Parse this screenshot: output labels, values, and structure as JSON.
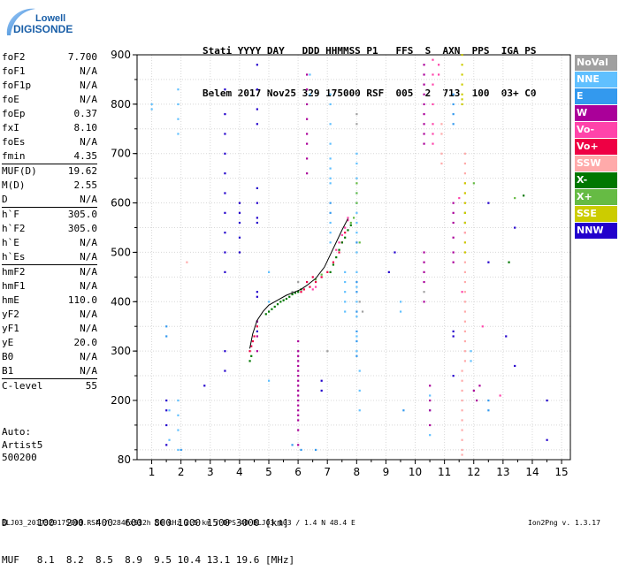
{
  "logo": {
    "line1": "Lowell",
    "line2": "DIGISONDE"
  },
  "header": {
    "line1": "Stati YYYY DAY   DDD HHMMSS P1   FFS  S  AXN  PPS  IGA PS",
    "line2": "Belem 2017 Nov25 329 175000 RSF  005  2  713  100  03+ C0"
  },
  "params": [
    {
      "label": "foF2",
      "value": "7.700"
    },
    {
      "label": "foF1",
      "value": "N/A"
    },
    {
      "label": "foF1p",
      "value": "N/A"
    },
    {
      "label": "foE",
      "value": "N/A"
    },
    {
      "label": "foEp",
      "value": "0.37"
    },
    {
      "label": "fxI",
      "value": "8.10"
    },
    {
      "label": "foEs",
      "value": "N/A"
    },
    {
      "label": "fmin",
      "value": "4.35"
    },
    {
      "sep": true
    },
    {
      "label": "MUF(D)",
      "value": "19.62"
    },
    {
      "label": "M(D)",
      "value": "2.55"
    },
    {
      "label": "D",
      "value": "N/A"
    },
    {
      "sep": true
    },
    {
      "label": "h`F",
      "value": "305.0"
    },
    {
      "label": "h`F2",
      "value": "305.0"
    },
    {
      "label": "h`E",
      "value": "N/A"
    },
    {
      "label": "h`Es",
      "value": "N/A"
    },
    {
      "sep": true
    },
    {
      "label": "hmF2",
      "value": "N/A"
    },
    {
      "label": "hmF1",
      "value": "N/A"
    },
    {
      "label": "hmE",
      "value": "110.0"
    },
    {
      "label": "yF2",
      "value": "N/A"
    },
    {
      "label": "yF1",
      "value": "N/A"
    },
    {
      "label": "yE",
      "value": "20.0"
    },
    {
      "label": "B0",
      "value": "N/A"
    },
    {
      "label": "B1",
      "value": "N/A"
    },
    {
      "sep": true
    },
    {
      "label": "C-level",
      "value": "55"
    }
  ],
  "auto": {
    "line1": "Auto:",
    "line2": "Artist5",
    "line3": "500200"
  },
  "muf_table": {
    "line1": "D     100  200  400  600  800 1000 1500 3000 [km]",
    "line2": "MUF   8.1  8.2  8.5  8.9  9.5 10.4 13.1 19.6 [MHz]"
  },
  "footer": {
    "left": "BLJ03_2017329175000.RSF / 284fx512h 50 kHz 2.5 km / DPS-4D BLJ03 103 / 1.4 N 48.4 E",
    "right": "Ion2Png v. 1.3.17"
  },
  "legend": [
    {
      "label": "NoVal",
      "color": "#a0a0a0"
    },
    {
      "label": "NNE",
      "color": "#60c0ff"
    },
    {
      "label": "E",
      "color": "#3399ee"
    },
    {
      "label": "W",
      "color": "#aa0099"
    },
    {
      "label": "Vo-",
      "color": "#ff44aa"
    },
    {
      "label": "Vo+",
      "color": "#ee0044"
    },
    {
      "label": "SSW",
      "color": "#ffaaaa"
    },
    {
      "label": "X-",
      "color": "#007700"
    },
    {
      "label": "X+",
      "color": "#66bb44"
    },
    {
      "label": "SSE",
      "color": "#cccc00"
    },
    {
      "label": "NNW",
      "color": "#2200cc"
    }
  ],
  "chart_data": {
    "type": "scatter",
    "xlabel": "",
    "ylabel": "",
    "xlim": [
      0.5,
      15.3
    ],
    "ylim": [
      80,
      900
    ],
    "xticks": [
      1,
      2,
      3,
      4,
      5,
      6,
      7,
      8,
      9,
      10,
      11,
      12,
      13,
      14,
      15
    ],
    "yticks": [
      80,
      200,
      300,
      400,
      500,
      600,
      700,
      800,
      900
    ],
    "grid": true,
    "trace_curve": {
      "name": "",
      "color": "#000000",
      "x": [
        4.35,
        4.45,
        4.6,
        4.8,
        5.0,
        5.3,
        5.6,
        5.9,
        6.1,
        6.3,
        6.6,
        6.9,
        7.1,
        7.3,
        7.5,
        7.7
      ],
      "y": [
        305,
        335,
        362,
        380,
        393,
        403,
        413,
        420,
        425,
        433,
        447,
        470,
        495,
        520,
        545,
        568
      ]
    },
    "series": [
      {
        "name": "NNW",
        "color": "#2200cc",
        "x": [
          3.5,
          3.5,
          3.5,
          3.5,
          3.5,
          3.5,
          3.5,
          3.5,
          3.5,
          3.5,
          3.5,
          3.5,
          4.6,
          4.6,
          4.6,
          4.6,
          4.6,
          4.6,
          4.6,
          4.6,
          4.6,
          4.6,
          4.6,
          4.6,
          4.0,
          4.0,
          4.0,
          4.0,
          4.0,
          1.5,
          1.5,
          1.5,
          1.5,
          11.3,
          11.3,
          11.3,
          12.5,
          12.5,
          13.4,
          13.4,
          13.1,
          14.5,
          14.5,
          2.8,
          6.8,
          6.8,
          9.3,
          9.1
        ],
        "y": [
          830,
          780,
          740,
          700,
          660,
          620,
          580,
          540,
          500,
          460,
          300,
          260,
          880,
          830,
          790,
          760,
          630,
          600,
          570,
          560,
          420,
          410,
          360,
          340,
          600,
          580,
          560,
          530,
          500,
          200,
          180,
          150,
          110,
          340,
          330,
          250,
          600,
          480,
          550,
          270,
          330,
          200,
          120,
          230,
          240,
          220,
          500,
          460
        ]
      },
      {
        "name": "NNE",
        "color": "#60c0ff",
        "x": [
          1.9,
          1.9,
          1.9,
          1.9,
          1.9,
          1.9,
          1.9,
          1.9,
          7.1,
          7.1,
          7.1,
          7.1,
          7.1,
          7.1,
          7.1,
          7.1,
          7.1,
          7.1,
          7.1,
          8.0,
          8.0,
          8.0,
          8.0,
          8.0,
          8.0,
          8.0,
          8.0,
          8.0,
          8.0,
          8.0,
          8.0,
          8.0,
          8.0,
          8.0,
          8.1,
          8.1,
          8.1,
          7.6,
          7.6,
          7.6,
          7.6,
          7.6,
          5.0,
          5.0,
          5.0,
          10.5,
          10.5,
          10.5,
          11.9,
          11.9,
          9.5,
          9.5,
          1.0,
          1.0,
          1.6,
          1.6,
          6.4,
          6.4
        ],
        "y": [
          830,
          800,
          770,
          740,
          200,
          170,
          140,
          100,
          820,
          800,
          760,
          720,
          690,
          670,
          650,
          640,
          560,
          540,
          520,
          700,
          680,
          650,
          620,
          600,
          580,
          560,
          540,
          500,
          460,
          430,
          400,
          370,
          330,
          300,
          260,
          220,
          180,
          460,
          440,
          420,
          400,
          380,
          460,
          400,
          240,
          210,
          180,
          130,
          300,
          280,
          400,
          380,
          800,
          790,
          180,
          120,
          860,
          820
        ]
      },
      {
        "name": "W",
        "color": "#aa0099",
        "x": [
          6.0,
          6.0,
          6.0,
          6.0,
          6.0,
          6.0,
          6.0,
          6.0,
          6.0,
          6.0,
          6.0,
          6.0,
          6.0,
          6.0,
          6.0,
          6.0,
          6.0,
          6.0,
          6.3,
          6.3,
          6.3,
          6.3,
          6.3,
          6.3,
          6.3,
          6.3,
          10.3,
          10.3,
          10.3,
          10.3,
          10.3,
          10.3,
          10.3,
          10.3,
          10.3,
          10.3,
          10.3,
          10.3,
          10.3,
          10.3,
          10.5,
          10.5,
          10.5,
          10.5,
          11.3,
          11.3,
          11.3,
          11.3,
          11.3,
          11.3,
          4.6,
          4.6,
          4.6,
          12.0,
          12.1,
          12.2
        ],
        "y": [
          320,
          300,
          290,
          280,
          270,
          260,
          250,
          240,
          230,
          220,
          210,
          200,
          190,
          180,
          170,
          160,
          140,
          110,
          860,
          830,
          800,
          770,
          740,
          720,
          690,
          660,
          880,
          860,
          840,
          820,
          800,
          780,
          760,
          740,
          720,
          500,
          480,
          460,
          440,
          400,
          230,
          200,
          180,
          150,
          600,
          580,
          560,
          530,
          500,
          480,
          360,
          330,
          300,
          220,
          200,
          230
        ]
      },
      {
        "name": "Vo-",
        "color": "#ff44aa",
        "x": [
          7.3,
          7.4,
          7.5,
          7.6,
          7.7,
          7.7,
          10.6,
          10.6,
          10.6,
          10.6,
          10.6,
          10.6,
          10.6,
          10.8,
          10.8,
          11.5,
          11.7,
          11.6,
          12.9,
          6.5,
          6.6,
          12.3
        ],
        "y": [
          505,
          520,
          535,
          550,
          565,
          570,
          890,
          860,
          840,
          800,
          760,
          740,
          720,
          880,
          860,
          610,
          540,
          420,
          210,
          425,
          430,
          350
        ]
      },
      {
        "name": "Vo+",
        "color": "#ee0044",
        "x": [
          4.35,
          4.4,
          4.45,
          4.5,
          6.1,
          6.2,
          6.4,
          6.6,
          6.8,
          7.0,
          7.2,
          7.4,
          7.5,
          7.6,
          6.3,
          6.5,
          4.6
        ],
        "y": [
          300,
          310,
          320,
          330,
          420,
          425,
          430,
          440,
          450,
          460,
          480,
          500,
          520,
          540,
          440,
          450,
          350
        ]
      },
      {
        "name": "SSW",
        "color": "#ffaaaa",
        "x": [
          11.7,
          11.7,
          11.7,
          11.7,
          11.7,
          11.7,
          11.7,
          11.7,
          11.7,
          11.7,
          11.7,
          11.7,
          11.7,
          11.7,
          11.7,
          11.7,
          11.7,
          11.7,
          11.7,
          11.7,
          11.7,
          11.7,
          11.6,
          11.6,
          11.6,
          11.6,
          11.6,
          11.6,
          11.6,
          11.6,
          11.6,
          11.6,
          10.9,
          10.9,
          10.9,
          10.9,
          2.2
        ],
        "y": [
          700,
          680,
          660,
          640,
          620,
          600,
          580,
          560,
          540,
          520,
          500,
          480,
          460,
          440,
          420,
          400,
          380,
          360,
          340,
          320,
          300,
          280,
          260,
          240,
          220,
          200,
          180,
          160,
          140,
          120,
          100,
          90,
          760,
          740,
          700,
          680,
          480
        ]
      },
      {
        "name": "X-",
        "color": "#007700",
        "x": [
          4.9,
          5.0,
          5.1,
          5.2,
          5.3,
          5.4,
          5.5,
          5.6,
          5.7,
          5.8,
          5.9,
          6.0,
          6.1,
          7.1,
          7.2,
          7.3,
          7.4,
          7.5,
          7.6,
          7.7,
          7.8,
          4.35,
          4.4,
          13.7,
          13.2
        ],
        "y": [
          375,
          380,
          385,
          390,
          395,
          400,
          403,
          406,
          410,
          415,
          418,
          420,
          425,
          460,
          475,
          490,
          505,
          520,
          530,
          545,
          555,
          280,
          290,
          615,
          480
        ]
      },
      {
        "name": "X+",
        "color": "#66bb44",
        "x": [
          7.8,
          7.9,
          8.0,
          8.0,
          8.0,
          6.6,
          6.8,
          11.7,
          11.7,
          12.0,
          13.4,
          8.1
        ],
        "y": [
          560,
          570,
          600,
          620,
          640,
          445,
          455,
          580,
          560,
          640,
          610,
          520
        ]
      },
      {
        "name": "SSE",
        "color": "#cccc00",
        "x": [
          11.6,
          11.6,
          11.6,
          11.6,
          11.6,
          11.6,
          11.6,
          11.7,
          11.7,
          11.7,
          11.7,
          11.7,
          11.7,
          11.7
        ],
        "y": [
          900,
          880,
          860,
          840,
          820,
          810,
          800,
          640,
          620,
          600,
          580,
          560,
          520,
          500
        ]
      },
      {
        "name": "E",
        "color": "#3399ee",
        "x": [
          8.0,
          8.0,
          8.0,
          8.0,
          8.0,
          8.0,
          8.0,
          7.1,
          7.1,
          11.3,
          11.3,
          11.3,
          11.3,
          12.5,
          12.5,
          9.6,
          2.0,
          1.5,
          1.5,
          5.8,
          6.1,
          6.6
        ],
        "y": [
          520,
          440,
          420,
          380,
          340,
          320,
          290,
          600,
          580,
          820,
          800,
          780,
          760,
          200,
          180,
          180,
          100,
          350,
          330,
          110,
          100,
          100
        ]
      },
      {
        "name": "NoVal",
        "color": "#a0a0a0",
        "x": [
          8.0,
          8.0,
          8.1,
          8.2,
          5.8,
          6.0,
          7.0,
          10.3
        ],
        "y": [
          780,
          760,
          400,
          380,
          420,
          440,
          300,
          420
        ]
      }
    ]
  }
}
